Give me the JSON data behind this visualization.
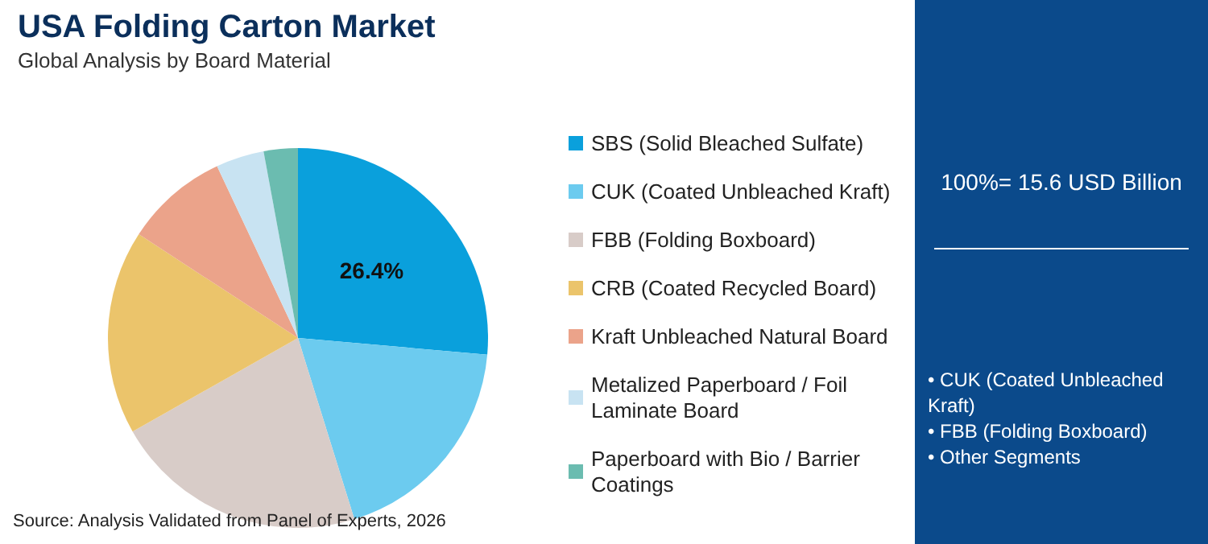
{
  "chart_data": {
    "type": "pie",
    "title": "USA Folding Carton Market",
    "subtitle": "Global Analysis by Board Material",
    "categories": [
      "SBS (Solid Bleached Sulfate)",
      "CUK (Coated Unbleached Kraft)",
      "FBB (Folding Boxboard)",
      "CRB (Coated Recycled Board)",
      "Kraft Unbleached Natural Board",
      "Metalized Paperboard / Foil Laminate Board",
      "Paperboard with Bio / Barrier Coatings"
    ],
    "values": [
      26.4,
      18.8,
      21.6,
      17.4,
      8.8,
      4.1,
      2.9
    ],
    "colors": [
      "#0aa0dc",
      "#6ccbef",
      "#d8ccc8",
      "#ebc46b",
      "#eba38a",
      "#c8e3f2",
      "#6bbcb0"
    ],
    "value_labels": [
      "26.4%",
      null,
      null,
      null,
      null,
      null,
      null
    ],
    "legend": "right",
    "annotations": [
      "Source: Analysis Validated from Panel of Experts, 2026",
      "100%= 15.6 USD Billion",
      "• CUK (Coated Unbleached Kraft)",
      "• FBB (Folding Boxboard)",
      "• Other Segments"
    ]
  }
}
